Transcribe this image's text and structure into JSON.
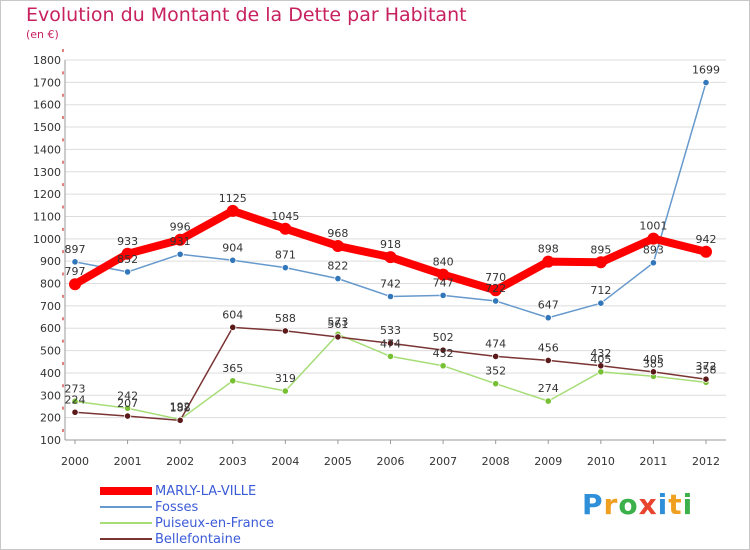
{
  "title": "Evolution du Montant de la Dette par Habitant",
  "subtitle": "(en €)",
  "logo_text": "Proxiti",
  "colors": {
    "title": "#c8215f",
    "legend_text": "#3b5bd8",
    "grid": "#dddddd",
    "axis_ticks": "#cc0000"
  },
  "chart_data": {
    "type": "line",
    "x": [
      "2000",
      "2001",
      "2002",
      "2003",
      "2004",
      "2005",
      "2006",
      "2007",
      "2008",
      "2009",
      "2010",
      "2011",
      "2012"
    ],
    "ylim": [
      100,
      1800
    ],
    "yticks": [
      "100",
      "200",
      "300",
      "400",
      "500",
      "600",
      "700",
      "800",
      "900",
      "1000",
      "1100",
      "1200",
      "1300",
      "1400",
      "1500",
      "1600",
      "1700",
      "1800"
    ],
    "grid": "horizontal",
    "legend_position": "bottom-left",
    "series": [
      {
        "name": "Fosses",
        "color": "#6699cc",
        "marker_color": "#3377bb",
        "values": [
          897,
          852,
          931,
          904,
          871,
          822,
          742,
          747,
          722,
          647,
          712,
          893,
          1699
        ],
        "labels": [
          "897",
          "852",
          "931",
          "904",
          "871",
          "822",
          "742",
          "747",
          "722",
          "647",
          "712",
          "893",
          "1699"
        ]
      },
      {
        "name": "Puiseux-en-France",
        "color": "#a6dd77",
        "marker_color": "#77c033",
        "values": [
          273,
          242,
          192,
          365,
          319,
          573,
          474,
          432,
          352,
          274,
          405,
          385,
          358
        ],
        "labels": [
          "273",
          "242",
          "192",
          "365",
          "319",
          "573",
          "474",
          "432",
          "352",
          "274",
          "405",
          "385",
          "358"
        ]
      },
      {
        "name": "Bellefontaine",
        "color": "#7a3434",
        "marker_color": "#5a1a1a",
        "values": [
          224,
          207,
          188,
          604,
          588,
          561,
          533,
          502,
          474,
          456,
          432,
          405,
          372
        ],
        "labels": [
          "224",
          "207",
          "188",
          "604",
          "588",
          "561",
          "533",
          "502",
          "474",
          "456",
          "432",
          "405",
          "372"
        ]
      },
      {
        "name": "MARLY-LA-VILLE",
        "color": "#ff0000",
        "marker_color": "#ff0000",
        "values": [
          797,
          933,
          996,
          1125,
          1045,
          968,
          918,
          840,
          770,
          898,
          895,
          1001,
          942
        ],
        "labels": [
          "797",
          "933",
          "996",
          "1125",
          "1045",
          "968",
          "918",
          "840",
          "770",
          "898",
          "895",
          "1001",
          "942"
        ]
      }
    ],
    "legend": [
      "MARLY-LA-VILLE",
      "Fosses",
      "Puiseux-en-France",
      "Bellefontaine"
    ]
  }
}
